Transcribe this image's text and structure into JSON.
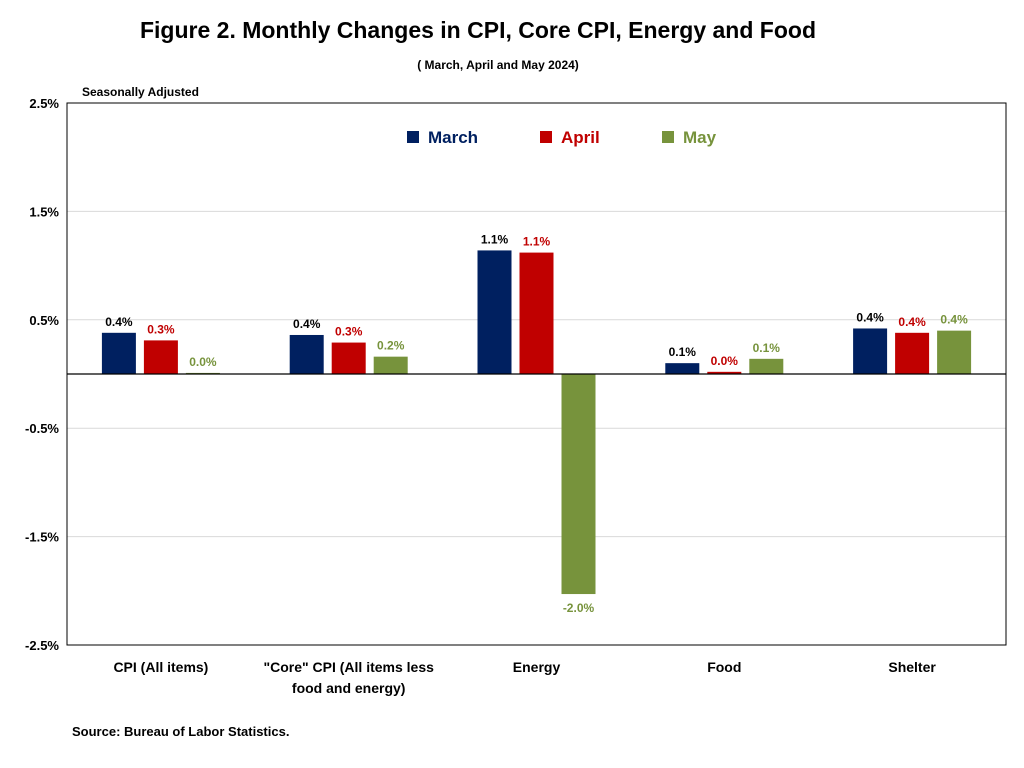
{
  "title": "Figure 2. Monthly Changes in CPI, Core CPI, Energy and Food",
  "subtitle": "( March, April and May 2024)",
  "source": "Source: Bureau of Labor Statistics.",
  "chart_data": {
    "type": "bar",
    "ylabel": "Seasonally Adjusted",
    "ylim": [
      -2.5,
      2.5
    ],
    "yticks": [
      2.5,
      1.5,
      0.5,
      -0.5,
      -1.5,
      -2.5
    ],
    "ytick_labels": [
      "2.5%",
      "1.5%",
      "0.5%",
      "-0.5%",
      "-1.5%",
      "-2.5%"
    ],
    "grid": true,
    "legend_position": "top-center",
    "categories": [
      [
        "CPI (All items)"
      ],
      [
        "\"Core\" CPI (All items less",
        "food and energy)"
      ],
      [
        "Energy"
      ],
      [
        "Food"
      ],
      [
        "Shelter"
      ]
    ],
    "series": [
      {
        "name": "March",
        "color": "#002060",
        "label_color": "#000000",
        "values": [
          0.38,
          0.36,
          1.14,
          0.1,
          0.42
        ],
        "labels": [
          "0.4%",
          "0.4%",
          "1.1%",
          "0.1%",
          "0.4%"
        ]
      },
      {
        "name": "April",
        "color": "#C00000",
        "label_color": "#C00000",
        "values": [
          0.31,
          0.29,
          1.12,
          0.02,
          0.38
        ],
        "labels": [
          "0.3%",
          "0.3%",
          "1.1%",
          "0.0%",
          "0.4%"
        ]
      },
      {
        "name": "May",
        "color": "#77933C",
        "label_color": "#77933C",
        "values": [
          0.01,
          0.16,
          -2.03,
          0.14,
          0.4
        ],
        "labels": [
          "0.0%",
          "0.2%",
          "-2.0%",
          "0.1%",
          "0.4%"
        ]
      }
    ]
  }
}
